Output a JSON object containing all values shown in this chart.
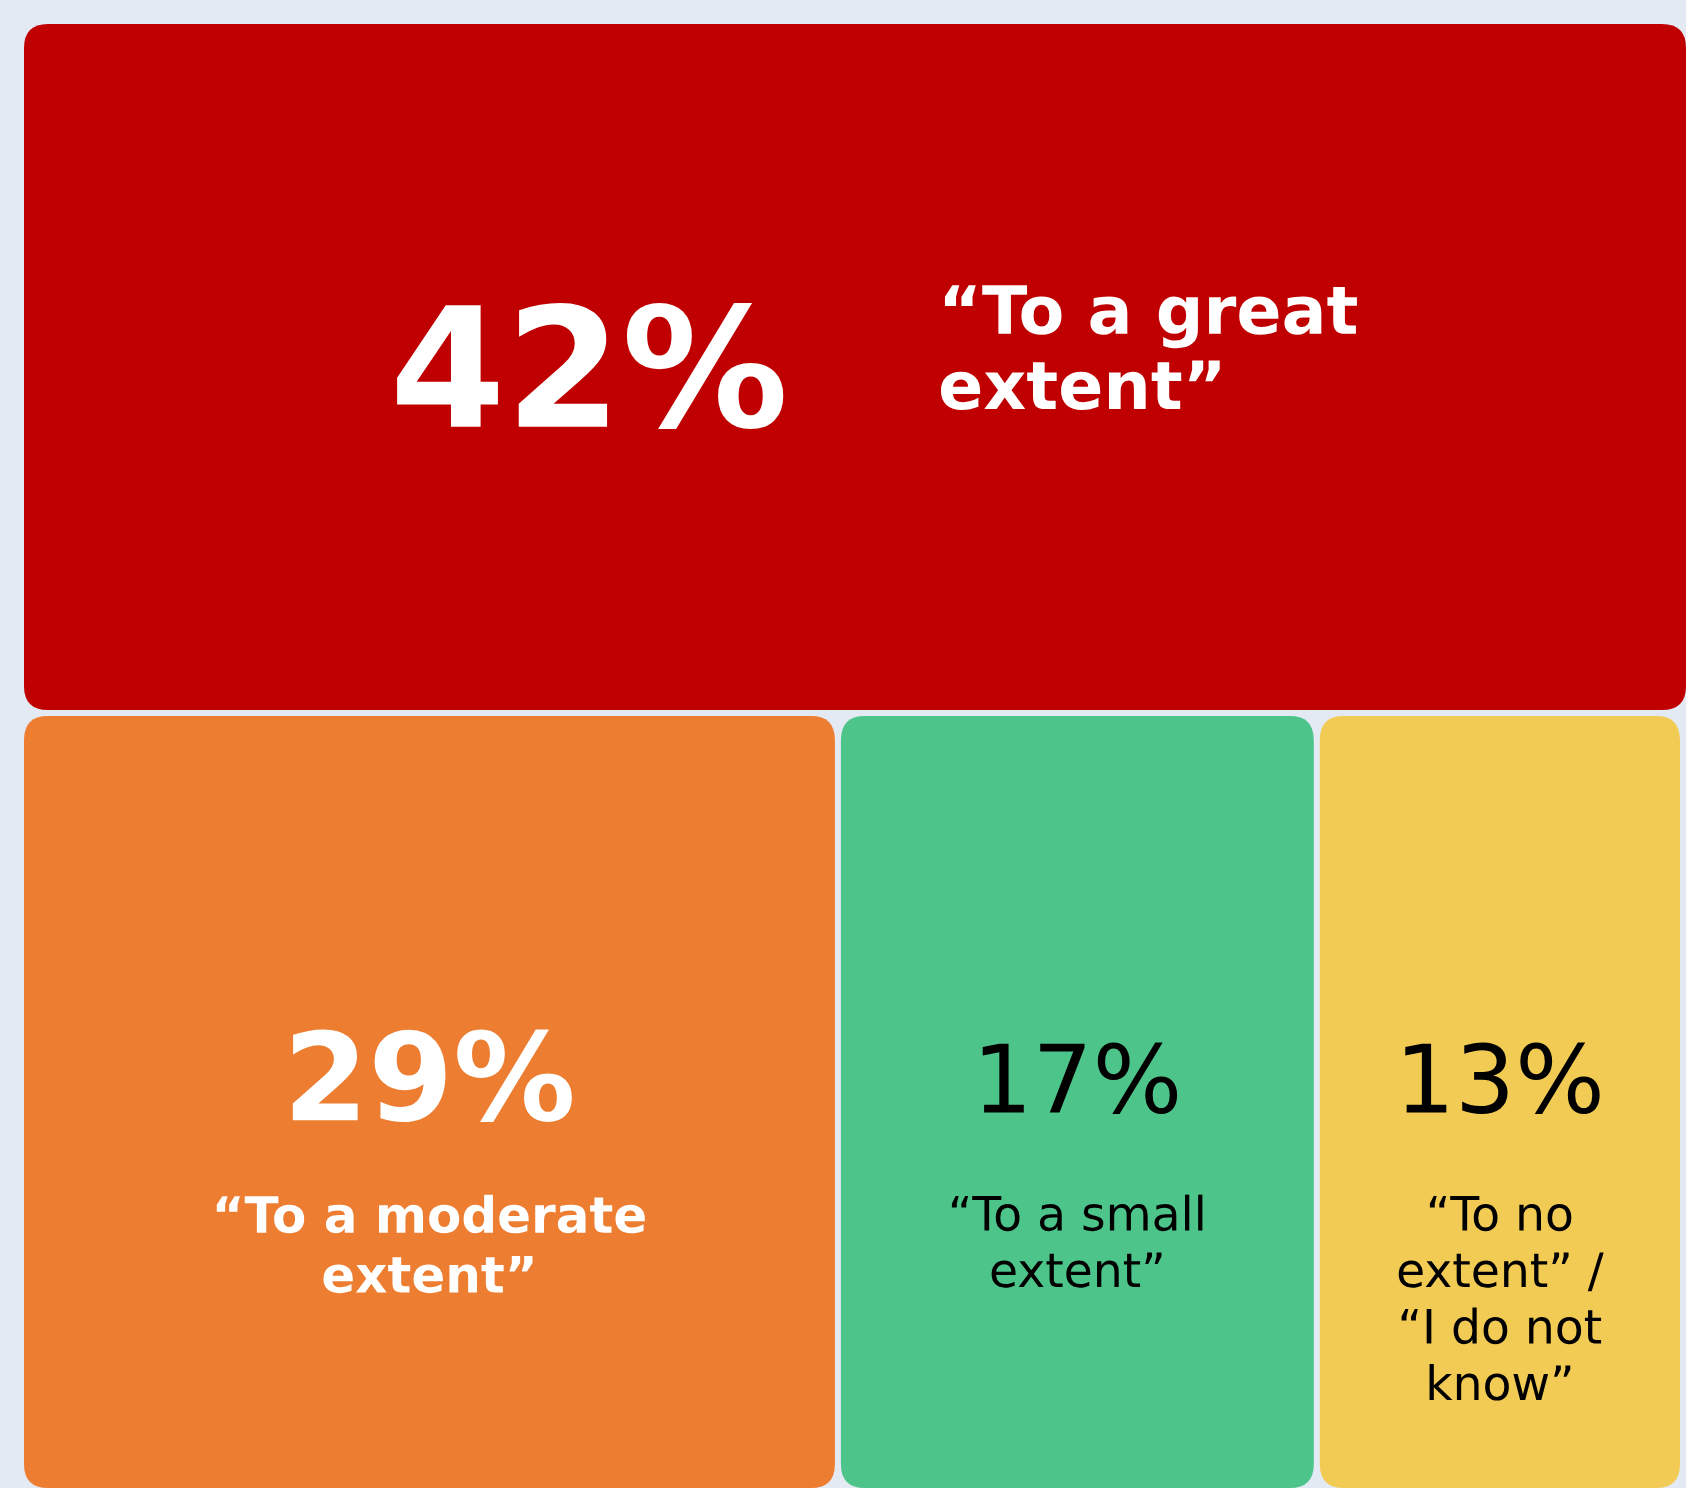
{
  "chart_data": {
    "type": "other",
    "categories": [
      "“To a great\nextent”",
      "“To a moderate\nextent”",
      "“To a small\nextent”",
      "“To no\nextent” /\n“I do not\nknow”"
    ],
    "values": [
      42,
      29,
      17,
      13
    ],
    "value_labels": [
      "42%",
      "29%",
      "17%",
      "13%"
    ],
    "colors": [
      "#c00000",
      "#ed7d31",
      "#4dc48a",
      "#f2cb55"
    ]
  }
}
